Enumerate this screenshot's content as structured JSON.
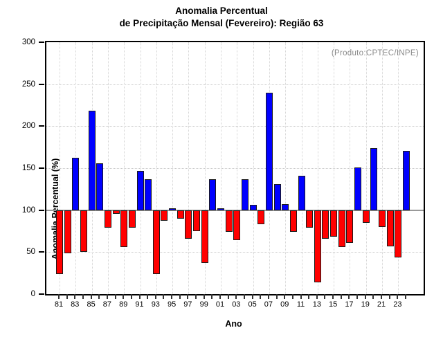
{
  "chart_data": {
    "type": "bar",
    "title_line1": "Anomalia Percentual",
    "title_line2": "de Precipitação Mensal (Fevereiro): Região 63",
    "watermark": "(Produto:CPTEC/INPE)",
    "xlabel": "Ano",
    "ylabel": "Anomalia Percentual (%)",
    "ylim": [
      0,
      300
    ],
    "yticks": [
      0,
      50,
      100,
      150,
      200,
      250,
      300
    ],
    "grid": "dotted",
    "baseline": 100,
    "colors": {
      "above_baseline": "#0000ff",
      "below_baseline": "#ff0000",
      "bar_border": "#1a1a1a",
      "baseline_line": "#999999",
      "gridline": "#cccccc",
      "watermark_text": "#8a8a8a"
    },
    "categories": [
      "81",
      "82",
      "83",
      "84",
      "85",
      "86",
      "87",
      "88",
      "89",
      "90",
      "91",
      "92",
      "93",
      "94",
      "95",
      "96",
      "97",
      "98",
      "99",
      "00",
      "01",
      "02",
      "03",
      "04",
      "05",
      "06",
      "07",
      "08",
      "09",
      "10",
      "11",
      "12",
      "13",
      "14",
      "15",
      "16",
      "17",
      "18",
      "19",
      "20",
      "21",
      "22",
      "23",
      "24"
    ],
    "label_every": 2,
    "values": [
      24,
      49,
      162,
      50,
      218,
      156,
      79,
      96,
      56,
      79,
      147,
      137,
      24,
      87,
      102,
      90,
      66,
      75,
      37,
      137,
      102,
      74,
      64,
      137,
      106,
      83,
      240,
      131,
      107,
      74,
      141,
      79,
      14,
      66,
      68,
      56,
      61,
      151,
      85,
      174,
      80,
      57,
      44,
      171
    ]
  }
}
